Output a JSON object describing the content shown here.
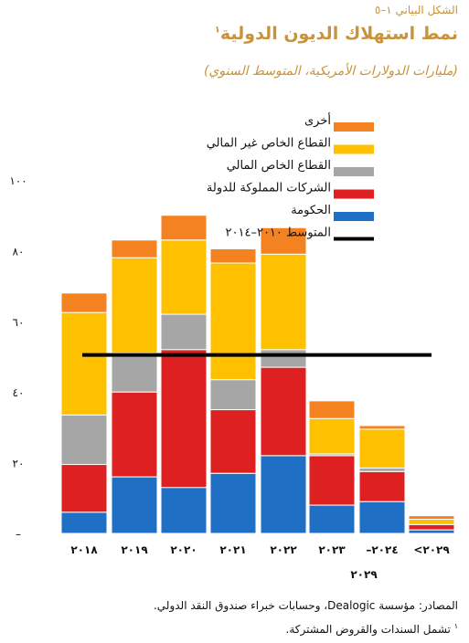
{
  "figure_label": "الشكل البياني ١–٥",
  "title": "نمط استهلاك الديون الدولية",
  "title_note": "١",
  "subtitle": "(مليارات الدولارات الأمريكية، المتوسط السنوي)",
  "source": "المصادر: مؤسسة Dealogic، وحسابات خبراء صندوق النقد الدولي.",
  "footnote_mark": "١",
  "footnote": "تشمل السندات والقروض المشتركة.",
  "chart_data": {
    "type": "bar",
    "stacked": true,
    "categories": [
      "٢٠١٨",
      "٢٠١٩",
      "٢٠٢٠",
      "٢٠٢١",
      "٢٠٢٢",
      "٢٠٢٣",
      "–٢٠٢٤\n٢٠٢٩",
      "<٢٠٢٩"
    ],
    "ylim": [
      0,
      100
    ],
    "yticks": [
      0,
      20,
      40,
      60,
      80,
      100
    ],
    "ytick_labels": [
      "–",
      "٢٠",
      "٤٠",
      "٦٠",
      "٨٠",
      "١٠٠"
    ],
    "grid": false,
    "legend_position": "top",
    "series": [
      {
        "name": "الحكومة",
        "color": "#1f6fc5",
        "values": [
          6,
          16,
          13,
          17,
          22,
          8,
          9,
          1
        ]
      },
      {
        "name": "الشركات المملوكة للدولة",
        "color": "#de2020",
        "values": [
          13.5,
          24,
          39,
          18,
          25,
          14,
          8.5,
          1.5
        ]
      },
      {
        "name": "القطاع الخاص المالي",
        "color": "#a6a6a6",
        "values": [
          14,
          11,
          10,
          8.5,
          5,
          0.5,
          1,
          0
        ]
      },
      {
        "name": "القطاع الخاص غير المالي",
        "color": "#ffc000",
        "values": [
          29,
          27,
          21,
          33,
          27,
          10,
          11,
          1.5
        ]
      },
      {
        "name": "أخرى",
        "color": "#f58220",
        "values": [
          5.5,
          5,
          7,
          4,
          7.5,
          5,
          1,
          1
        ]
      }
    ],
    "average_line": {
      "name": "المتوسط ٢٠١٠–٢٠١٤",
      "color": "#000000",
      "value": 50.5
    }
  }
}
